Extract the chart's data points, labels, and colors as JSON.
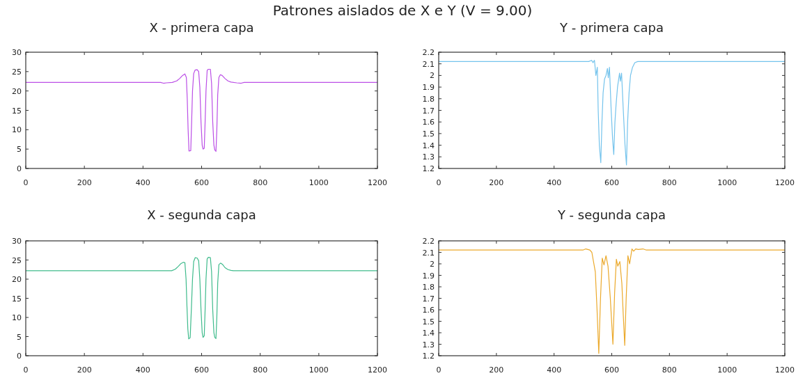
{
  "chart_data": [
    {
      "type": "line",
      "title": "X - primera capa",
      "annotations": [
        "Patrones aislados de X e Y (V = 9.00)"
      ],
      "xlim": [
        0,
        1200
      ],
      "ylim": [
        0,
        30
      ],
      "xticks": [
        0,
        200,
        400,
        600,
        800,
        1000,
        1200
      ],
      "yticks": [
        0,
        5,
        10,
        15,
        20,
        25,
        30
      ],
      "grid": false,
      "marker": "none",
      "series": [
        {
          "color": "#bb4fe6",
          "x": [
            0,
            460,
            470,
            480,
            500,
            515,
            525,
            535,
            543,
            548,
            551,
            554,
            557,
            563,
            566,
            569,
            573,
            578,
            585,
            590,
            594,
            598,
            602,
            605,
            609,
            612,
            615,
            619,
            623,
            630,
            634,
            638,
            642,
            645,
            649,
            652,
            655,
            659,
            664,
            670,
            680,
            690,
            700,
            720,
            735,
            745,
            1200
          ],
          "values": [
            22.2,
            22.2,
            22.0,
            22.1,
            22.2,
            22.6,
            23.2,
            24.0,
            24.4,
            23.5,
            18,
            10,
            4.5,
            4.6,
            12,
            20,
            24.5,
            25.4,
            25.5,
            25.0,
            21,
            12,
            6,
            5.0,
            5.2,
            12,
            20,
            25.3,
            25.6,
            25.6,
            22,
            12,
            6,
            4.8,
            4.4,
            10,
            19,
            23.5,
            24.2,
            24.0,
            23.2,
            22.6,
            22.3,
            22.1,
            22.0,
            22.2,
            22.2
          ]
        }
      ]
    },
    {
      "type": "line",
      "title": "Y - primera capa",
      "xlim": [
        0,
        1200
      ],
      "ylim": [
        1.2,
        2.2
      ],
      "xticks": [
        0,
        200,
        400,
        600,
        800,
        1000,
        1200
      ],
      "yticks": [
        1.2,
        1.3,
        1.4,
        1.5,
        1.6,
        1.7,
        1.8,
        1.9,
        2,
        2.1,
        2.2
      ],
      "grid": false,
      "marker": "none",
      "series": [
        {
          "color": "#74c3ec",
          "x": [
            0,
            520,
            530,
            535,
            540,
            545,
            550,
            553,
            557,
            562,
            566,
            570,
            575,
            580,
            585,
            588,
            592,
            598,
            603,
            607,
            611,
            615,
            620,
            627,
            630,
            634,
            640,
            646,
            651,
            655,
            660,
            665,
            672,
            680,
            690,
            1200
          ],
          "values": [
            2.12,
            2.12,
            2.13,
            2.11,
            2.13,
            2.0,
            2.07,
            1.7,
            1.4,
            1.25,
            1.6,
            1.85,
            1.97,
            2.0,
            2.06,
            1.98,
            2.07,
            1.7,
            1.45,
            1.32,
            1.6,
            1.75,
            1.9,
            2.02,
            1.95,
            2.02,
            1.7,
            1.4,
            1.23,
            1.6,
            1.85,
            2.0,
            2.07,
            2.11,
            2.12,
            2.12
          ]
        }
      ]
    },
    {
      "type": "line",
      "title": "X - segunda capa",
      "xlim": [
        0,
        1200
      ],
      "ylim": [
        0,
        30
      ],
      "xticks": [
        0,
        200,
        400,
        600,
        800,
        1000,
        1200
      ],
      "yticks": [
        0,
        5,
        10,
        15,
        20,
        25,
        30
      ],
      "grid": false,
      "marker": "none",
      "series": [
        {
          "color": "#3fbb8c",
          "x": [
            0,
            498,
            510,
            520,
            530,
            538,
            543,
            547,
            550,
            553,
            556,
            561,
            565,
            569,
            573,
            578,
            585,
            590,
            594,
            598,
            602,
            605,
            609,
            612,
            615,
            619,
            623,
            630,
            634,
            638,
            642,
            645,
            649,
            652,
            655,
            659,
            665,
            672,
            680,
            690,
            700,
            708,
            1200
          ],
          "values": [
            22.2,
            22.2,
            22.6,
            23.3,
            24.1,
            24.4,
            24.3,
            20,
            13,
            7,
            4.4,
            4.7,
            12,
            20,
            24.6,
            25.6,
            25.5,
            24.8,
            20,
            12,
            6,
            4.8,
            5.2,
            12,
            20,
            25.3,
            25.7,
            25.6,
            22,
            12,
            6,
            4.8,
            4.5,
            10,
            19,
            23.8,
            24.2,
            23.8,
            23.0,
            22.5,
            22.3,
            22.2,
            22.2
          ]
        }
      ]
    },
    {
      "type": "line",
      "title": "Y - segunda capa",
      "xlim": [
        0,
        1200
      ],
      "ylim": [
        1.2,
        2.2
      ],
      "xticks": [
        0,
        200,
        400,
        600,
        800,
        1000,
        1200
      ],
      "yticks": [
        1.2,
        1.3,
        1.4,
        1.5,
        1.6,
        1.7,
        1.8,
        1.9,
        2,
        2.1,
        2.2
      ],
      "grid": false,
      "marker": "none",
      "series": [
        {
          "color": "#eba92b",
          "x": [
            0,
            500,
            510,
            524,
            531,
            543,
            549,
            555,
            561,
            567,
            573,
            580,
            587,
            595,
            604,
            610,
            616,
            621,
            628,
            635,
            640,
            645,
            650,
            656,
            662,
            670,
            676,
            683,
            692,
            708,
            720,
            1200
          ],
          "values": [
            2.12,
            2.12,
            2.13,
            2.12,
            2.1,
            1.93,
            1.6,
            1.22,
            1.7,
            2.05,
            1.99,
            2.07,
            1.98,
            1.7,
            1.3,
            1.75,
            2.04,
            1.98,
            2.02,
            1.83,
            1.55,
            1.29,
            1.7,
            2.07,
            2.0,
            2.13,
            2.11,
            2.13,
            2.125,
            2.13,
            2.12,
            2.12
          ]
        }
      ]
    }
  ]
}
